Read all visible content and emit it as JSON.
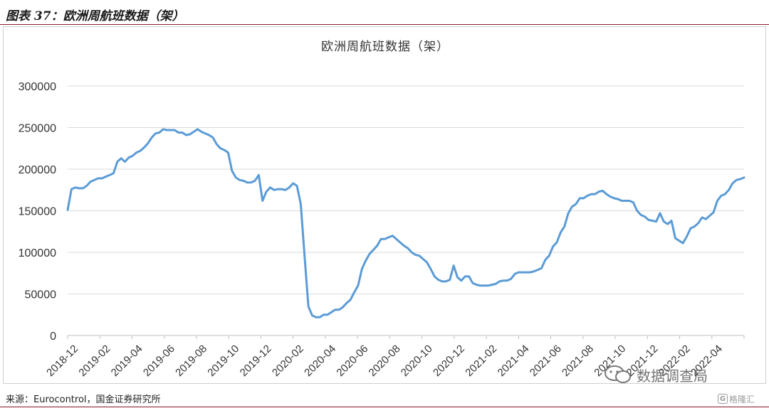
{
  "header": {
    "title": "图表 37：欧洲周航班数据（架）"
  },
  "source": {
    "text": "来源：Eurocontrol，国金证券研究所"
  },
  "watermark": {
    "text": "数据调查局",
    "icon": "wechat-bubbles-icon"
  },
  "logo": {
    "mark": "G",
    "text": "格隆汇"
  },
  "colors": {
    "line": "#5b9bd5",
    "header_rule": "#8a1c2c",
    "axis": "#d9d9d9"
  },
  "chart_data": {
    "type": "line",
    "title": "欧洲周航班数据（架）",
    "xlabel": "",
    "ylabel": "",
    "ylim": [
      0,
      300000
    ],
    "yticks": [
      "0",
      "50000",
      "100000",
      "150000",
      "200000",
      "250000",
      "300000"
    ],
    "xticks": [
      "2018-12",
      "2019-02",
      "2019-04",
      "2019-06",
      "2019-08",
      "2019-10",
      "2019-12",
      "2020-02",
      "2020-04",
      "2020-06",
      "2020-08",
      "2020-10",
      "2020-12",
      "2021-02",
      "2021-04",
      "2021-06",
      "2021-08",
      "2021-10",
      "2021-12",
      "2022-02",
      "2022-04"
    ],
    "grid": "horizontal",
    "legend": "none",
    "series": [
      {
        "values": [
          151000,
          176000,
          178000,
          177000,
          177000,
          180000,
          185000,
          187000,
          189000,
          189000,
          191000,
          193000,
          195000,
          209000,
          213000,
          209000,
          214000,
          216000,
          220000,
          222000,
          226000,
          231000,
          238000,
          243000,
          244000,
          248000,
          247000,
          247000,
          247000,
          244000,
          244000,
          241000,
          242000,
          245000,
          248000,
          245000,
          243000,
          241000,
          238000,
          230000,
          225000,
          223000,
          220000,
          198000,
          190000,
          187000,
          186000,
          184000,
          184000,
          186000,
          193000,
          162000,
          173000,
          178000,
          175000,
          176000,
          176000,
          175000,
          178000,
          183000,
          180000,
          158000,
          95000,
          35000,
          24000,
          22000,
          22000,
          25000,
          25000,
          28000,
          31000,
          31000,
          34000,
          39000,
          43000,
          52000,
          60000,
          80000,
          90000,
          98000,
          103000,
          108000,
          116000,
          116000,
          118000,
          120000,
          116000,
          112000,
          108000,
          105000,
          100000,
          97000,
          96000,
          92000,
          88000,
          80000,
          71000,
          67000,
          65000,
          65000,
          67000,
          84000,
          70000,
          66000,
          71000,
          71000,
          63000,
          61000,
          60000,
          60000,
          60000,
          61000,
          62000,
          65000,
          66000,
          66000,
          68000,
          74000,
          76000,
          76000,
          76000,
          76000,
          77000,
          79000,
          81000,
          91000,
          96000,
          107000,
          112000,
          124000,
          131000,
          147000,
          155000,
          158000,
          165000,
          165000,
          168000,
          170000,
          170000,
          173000,
          174000,
          170000,
          167000,
          165000,
          164000,
          162000,
          162000,
          162000,
          160000,
          150000,
          145000,
          143000,
          139000,
          138000,
          137000,
          147000,
          137000,
          134000,
          138000,
          117000,
          114000,
          111000,
          119000,
          129000,
          131000,
          135000,
          142000,
          140000,
          144000,
          148000,
          162000,
          168000,
          170000,
          175000,
          183000,
          187000,
          188000,
          190000
        ]
      }
    ]
  }
}
